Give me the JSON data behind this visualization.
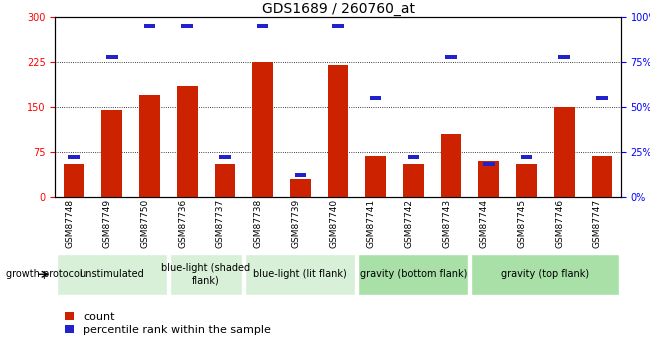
{
  "title": "GDS1689 / 260760_at",
  "samples": [
    "GSM87748",
    "GSM87749",
    "GSM87750",
    "GSM87736",
    "GSM87737",
    "GSM87738",
    "GSM87739",
    "GSM87740",
    "GSM87741",
    "GSM87742",
    "GSM87743",
    "GSM87744",
    "GSM87745",
    "GSM87746",
    "GSM87747"
  ],
  "counts": [
    55,
    145,
    170,
    185,
    55,
    225,
    30,
    220,
    68,
    55,
    105,
    60,
    55,
    150,
    68
  ],
  "percentile_values": [
    22,
    78,
    95,
    95,
    22,
    95,
    12,
    95,
    55,
    22,
    78,
    18,
    22,
    78,
    55
  ],
  "groups": [
    {
      "label": "unstimulated",
      "start": 0,
      "end": 3,
      "color": "#d8f0d8"
    },
    {
      "label": "blue-light (shaded\nflank)",
      "start": 3,
      "end": 5,
      "color": "#d8f0d8"
    },
    {
      "label": "blue-light (lit flank)",
      "start": 5,
      "end": 8,
      "color": "#d8f0d8"
    },
    {
      "label": "gravity (bottom flank)",
      "start": 8,
      "end": 11,
      "color": "#a8e0a8"
    },
    {
      "label": "gravity (top flank)",
      "start": 11,
      "end": 15,
      "color": "#a8e0a8"
    }
  ],
  "ylim_left": [
    0,
    300
  ],
  "ylim_right": [
    0,
    100
  ],
  "yticks_left": [
    0,
    75,
    150,
    225,
    300
  ],
  "yticks_right": [
    0,
    25,
    50,
    75,
    100
  ],
  "bar_color": "#cc2200",
  "percentile_color": "#2222cc",
  "bar_width": 0.55,
  "bg_gray": "#d0d0d0",
  "title_fontsize": 10,
  "tick_fontsize": 7,
  "sample_fontsize": 6.5,
  "legend_fontsize": 8,
  "group_label_fontsize": 7,
  "growth_protocol_label": "growth protocol",
  "legend_items": [
    {
      "label": "count",
      "color": "#cc2200"
    },
    {
      "label": "percentile rank within the sample",
      "color": "#2222cc"
    }
  ]
}
